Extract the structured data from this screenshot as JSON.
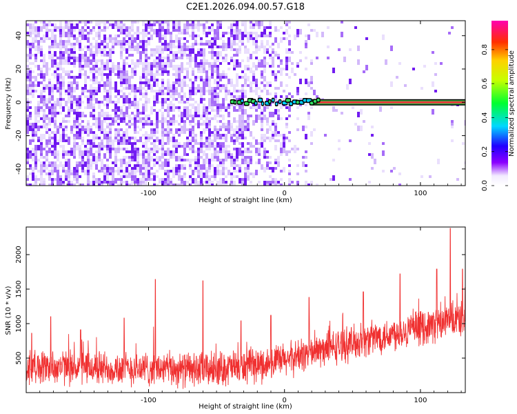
{
  "title": "C2E1.2026.094.00.57.G18",
  "colors": {
    "snr_series": "#f03030",
    "spectro_noise": "#7a2cf5",
    "signal_center": "#e83a3a",
    "frame": "#000000"
  },
  "chart_data": [
    {
      "type": "heatmap",
      "name": "spectrogram",
      "xlabel": "Height of straight line (km)",
      "ylabel": "Frequency (Hz)",
      "xlim": [
        -190,
        133
      ],
      "ylim": [
        -50,
        49
      ],
      "xticks": [
        -100,
        0,
        100
      ],
      "yticks": [
        -40,
        -20,
        0,
        20,
        40
      ],
      "xtick_labels": [
        "-100",
        "0",
        "100"
      ],
      "ytick_labels": [
        "-40",
        "-20",
        "0",
        "20",
        "40"
      ],
      "colorbar": {
        "label": "Normalized spectral amplitude",
        "range": [
          0,
          0.97
        ],
        "ticks": [
          0.0,
          0.2,
          0.4,
          0.6,
          0.8
        ],
        "tick_labels": [
          "0.0",
          "0.2",
          "0.4",
          "0.6",
          "0.8"
        ]
      },
      "signal": {
        "frequency_hz": 0,
        "visible_from_km": -40,
        "strong_from_km": 20,
        "end_km": 133,
        "peak_amplitude": 0.97
      },
      "noise": {
        "dense_until_km": -45,
        "fade_until_km": 25,
        "sparse_until_km": 133,
        "typical_amplitude": 0.15
      }
    },
    {
      "type": "line",
      "name": "snr",
      "xlabel": "Height of straight line (km)",
      "ylabel": "SNR (10 * v/v)",
      "xlim": [
        -190,
        133
      ],
      "ylim": [
        0,
        2400
      ],
      "xticks": [
        -100,
        0,
        100
      ],
      "yticks": [
        500,
        1000,
        1500,
        2000
      ],
      "xtick_labels": [
        "-100",
        "0",
        "100"
      ],
      "ytick_labels": [
        "500",
        "1000",
        "1500",
        "2000"
      ],
      "trend": [
        {
          "x": -190,
          "y": 380
        },
        {
          "x": -120,
          "y": 350
        },
        {
          "x": -60,
          "y": 330
        },
        {
          "x": -20,
          "y": 390
        },
        {
          "x": 0,
          "y": 470
        },
        {
          "x": 20,
          "y": 580
        },
        {
          "x": 50,
          "y": 720
        },
        {
          "x": 80,
          "y": 860
        },
        {
          "x": 110,
          "y": 980
        },
        {
          "x": 133,
          "y": 1080
        }
      ],
      "spikes": [
        {
          "x": -186,
          "y": 860
        },
        {
          "x": -172,
          "y": 1100
        },
        {
          "x": -150,
          "y": 910
        },
        {
          "x": -118,
          "y": 1080
        },
        {
          "x": -95,
          "y": 1640
        },
        {
          "x": -60,
          "y": 1620
        },
        {
          "x": -32,
          "y": 1040
        },
        {
          "x": -10,
          "y": 1120
        },
        {
          "x": 18,
          "y": 1380
        },
        {
          "x": 58,
          "y": 1460
        },
        {
          "x": 85,
          "y": 1720
        },
        {
          "x": 112,
          "y": 1790
        },
        {
          "x": 122,
          "y": 2380
        },
        {
          "x": 131,
          "y": 1790
        }
      ],
      "noise_amplitude": 200
    }
  ]
}
